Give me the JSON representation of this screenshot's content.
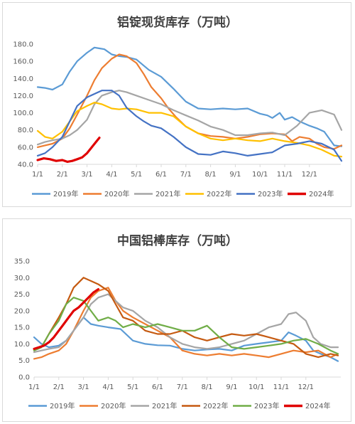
{
  "chart_data": [
    {
      "type": "line",
      "title": "铝锭现货库存（万吨）",
      "ylim": [
        40,
        180
      ],
      "y_ticks": [
        "40.0",
        "60.0",
        "80.0",
        "100.0",
        "120.0",
        "140.0",
        "160.0",
        "180.0"
      ],
      "x_ticks": [
        "1/1",
        "2/1",
        "3/1",
        "4/1",
        "5/1",
        "6/1",
        "7/1",
        "8/1",
        "9/1",
        "10/1",
        "11/1",
        "12/1"
      ],
      "legend_position": "bottom",
      "grid": false,
      "series": [
        {
          "name": "2019年",
          "color": "#5b9bd5",
          "x": [
            0,
            0.3,
            0.6,
            1,
            1.3,
            1.6,
            2,
            2.3,
            2.5,
            2.7,
            3,
            3.3,
            3.6,
            4,
            4.5,
            5,
            5.5,
            6,
            6.5,
            7,
            7.5,
            8,
            8.5,
            9,
            9.3,
            9.5,
            9.8,
            10,
            10.3,
            10.6,
            11,
            11.3,
            11.6,
            12,
            12.3
          ],
          "y": [
            130,
            129,
            127,
            133,
            148,
            160,
            170,
            176,
            175,
            174,
            168,
            166,
            165,
            162,
            150,
            142,
            128,
            113,
            105,
            104,
            105,
            104,
            105,
            99,
            97,
            94,
            100,
            92,
            95,
            90,
            85,
            82,
            78,
            62,
            61
          ]
        },
        {
          "name": "2020年",
          "color": "#ed7d31",
          "x": [
            0,
            0.3,
            0.6,
            1,
            1.3,
            1.6,
            2,
            2.3,
            2.6,
            3,
            3.3,
            3.6,
            4,
            4.3,
            4.6,
            5,
            5.3,
            5.6,
            6,
            6.5,
            7,
            7.5,
            8,
            8.5,
            9,
            9.5,
            10,
            10.3,
            10.6,
            11,
            11.3,
            11.6,
            12,
            12.3
          ],
          "y": [
            60,
            62,
            64,
            70,
            82,
            98,
            120,
            138,
            152,
            163,
            168,
            166,
            158,
            145,
            130,
            117,
            105,
            95,
            84,
            76,
            73,
            72,
            70,
            72,
            75,
            76,
            75,
            67,
            72,
            70,
            64,
            60,
            58,
            62
          ]
        },
        {
          "name": "2021年",
          "color": "#a5a5a5",
          "x": [
            0,
            0.3,
            0.6,
            1,
            1.3,
            1.6,
            2,
            2.3,
            2.6,
            3,
            3.3,
            3.6,
            4,
            4.5,
            5,
            5.5,
            6,
            6.5,
            7,
            7.5,
            8,
            8.5,
            9,
            9.5,
            10,
            10.5,
            11,
            11.5,
            12,
            12.3
          ],
          "y": [
            63,
            66,
            68,
            70,
            74,
            80,
            92,
            110,
            120,
            124,
            126,
            124,
            120,
            115,
            110,
            103,
            97,
            91,
            84,
            80,
            74,
            74,
            76,
            77,
            74,
            85,
            100,
            103,
            98,
            80
          ]
        },
        {
          "name": "2022年",
          "color": "#ffc000",
          "x": [
            0,
            0.3,
            0.6,
            1,
            1.3,
            1.6,
            2,
            2.3,
            2.6,
            3,
            3.3,
            3.6,
            4,
            4.5,
            5,
            5.5,
            6,
            6.5,
            7,
            7.5,
            8,
            8.5,
            9,
            9.5,
            10,
            10.5,
            11,
            11.5,
            12,
            12.3
          ],
          "y": [
            79,
            72,
            70,
            78,
            90,
            102,
            108,
            112,
            110,
            105,
            104,
            105,
            104,
            100,
            100,
            96,
            84,
            76,
            70,
            68,
            70,
            68,
            67,
            70,
            67,
            65,
            62,
            57,
            50,
            49
          ]
        },
        {
          "name": "2023年",
          "color": "#4472c4",
          "x": [
            0,
            0.3,
            0.6,
            1,
            1.3,
            1.6,
            2,
            2.3,
            2.6,
            3,
            3.3,
            3.6,
            4,
            4.3,
            4.6,
            5,
            5.5,
            6,
            6.5,
            7,
            7.5,
            8,
            8.5,
            9,
            9.5,
            10,
            10.5,
            11,
            11.5,
            12,
            12.3
          ],
          "y": [
            50,
            53,
            60,
            72,
            90,
            108,
            118,
            122,
            126,
            126,
            120,
            106,
            96,
            90,
            85,
            82,
            72,
            60,
            52,
            51,
            55,
            53,
            50,
            52,
            54,
            62,
            64,
            67,
            64,
            57,
            44
          ]
        },
        {
          "name": "2024年",
          "color": "#e00000",
          "x": [
            0,
            0.25,
            0.5,
            0.75,
            1,
            1.2,
            1.4,
            1.6,
            1.8,
            2,
            2.25,
            2.5
          ],
          "y": [
            45,
            47,
            46,
            44,
            45,
            43,
            44,
            46,
            48,
            53,
            62,
            71
          ]
        }
      ]
    },
    {
      "type": "line",
      "title": "中国铝棒库存（万吨）",
      "ylim": [
        0,
        35
      ],
      "y_ticks": [
        "0.0",
        "5.0",
        "10.0",
        "15.0",
        "20.0",
        "25.0",
        "30.0",
        "35.0"
      ],
      "x_ticks": [
        "1/1",
        "2/1",
        "3/1",
        "4/1",
        "5/1",
        "6/1",
        "7/1",
        "8/1",
        "9/1",
        "10/1",
        "11/1",
        "12/1"
      ],
      "legend_position": "bottom",
      "grid": false,
      "series": [
        {
          "name": "2019年",
          "color": "#5b9bd5",
          "x": [
            0,
            0.3,
            0.6,
            1,
            1.3,
            1.6,
            2,
            2.3,
            2.6,
            3,
            3.5,
            4,
            4.5,
            5,
            5.5,
            6,
            6.5,
            7,
            7.5,
            8,
            8.5,
            9,
            9.5,
            10,
            10.3,
            10.6,
            11,
            11.3,
            11.6,
            12,
            12.3
          ],
          "y": [
            12,
            10,
            9,
            9.5,
            11,
            14,
            18,
            16,
            15.5,
            15,
            14.5,
            11,
            10,
            9.6,
            9.5,
            8.5,
            8,
            8.3,
            8.5,
            8,
            9.5,
            10,
            10.5,
            11,
            13.5,
            12.5,
            11,
            8,
            7,
            6,
            4.8
          ]
        },
        {
          "name": "2020年",
          "color": "#ed7d31",
          "x": [
            0,
            0.3,
            0.6,
            1,
            1.3,
            1.6,
            2,
            2.3,
            2.6,
            3,
            3.3,
            3.6,
            4,
            4.5,
            5,
            5.5,
            6,
            6.5,
            7,
            7.5,
            8,
            8.5,
            9,
            9.5,
            10,
            10.5,
            11,
            11.5,
            12,
            12.3
          ],
          "y": [
            5.5,
            6,
            7,
            8,
            10,
            14,
            20,
            24,
            26,
            27,
            23,
            20,
            18,
            16,
            14,
            12,
            8,
            7,
            6.5,
            7,
            6.5,
            7,
            6.5,
            6,
            7,
            8,
            7.5,
            8,
            6,
            7
          ]
        },
        {
          "name": "2021年",
          "color": "#a5a5a5",
          "x": [
            0,
            0.3,
            0.6,
            1,
            1.3,
            1.6,
            2,
            2.3,
            2.6,
            3,
            3.3,
            3.6,
            4,
            4.5,
            5,
            5.5,
            6,
            6.5,
            7,
            7.5,
            8,
            8.5,
            9,
            9.5,
            10,
            10.3,
            10.6,
            11,
            11.3,
            11.6,
            12,
            12.3
          ],
          "y": [
            7.5,
            8,
            8.5,
            9,
            11,
            14,
            18,
            22,
            24,
            25,
            23,
            21,
            20,
            17,
            15,
            12,
            10,
            9,
            8.5,
            9,
            10,
            11,
            13,
            15,
            16,
            19,
            19.5,
            17,
            12,
            10,
            9,
            9
          ]
        },
        {
          "name": "2022年",
          "color": "#c55a11",
          "x": [
            0,
            0.3,
            0.6,
            1,
            1.3,
            1.6,
            2,
            2.3,
            2.6,
            3,
            3.3,
            3.6,
            4,
            4.5,
            5,
            5.5,
            6,
            6.5,
            7,
            7.5,
            8,
            8.5,
            9,
            9.5,
            10,
            10.5,
            11,
            11.5,
            12,
            12.3
          ],
          "y": [
            8,
            9,
            13,
            18,
            22,
            27,
            30,
            29,
            28,
            26,
            22,
            18,
            17,
            14,
            13,
            13,
            14,
            12,
            11,
            12,
            13,
            12.5,
            13,
            12,
            11,
            10,
            7,
            6,
            7,
            6.5
          ]
        },
        {
          "name": "2023年",
          "color": "#70ad47",
          "x": [
            0,
            0.3,
            0.6,
            1,
            1.3,
            1.6,
            2,
            2.3,
            2.6,
            3,
            3.3,
            3.6,
            4,
            4.5,
            5,
            5.5,
            6,
            6.5,
            7,
            7.5,
            8,
            8.5,
            9,
            9.5,
            10,
            10.5,
            11,
            11.5,
            12,
            12.3
          ],
          "y": [
            8,
            9,
            13,
            17,
            22,
            24,
            23,
            20,
            17,
            18,
            17,
            15,
            16,
            15,
            16,
            15,
            14,
            14,
            15.5,
            12,
            9,
            8.5,
            9,
            9.5,
            10,
            11,
            11.5,
            10,
            8,
            7
          ]
        },
        {
          "name": "2024年",
          "color": "#e00000",
          "x": [
            0,
            0.2,
            0.4,
            0.6,
            0.8,
            1,
            1.2,
            1.4,
            1.6,
            1.8,
            2,
            2.2,
            2.4,
            2.6
          ],
          "y": [
            8.5,
            9,
            9.5,
            10.5,
            12,
            14,
            16,
            18,
            20,
            21,
            22.5,
            24,
            25.5,
            26.5
          ]
        }
      ]
    }
  ]
}
